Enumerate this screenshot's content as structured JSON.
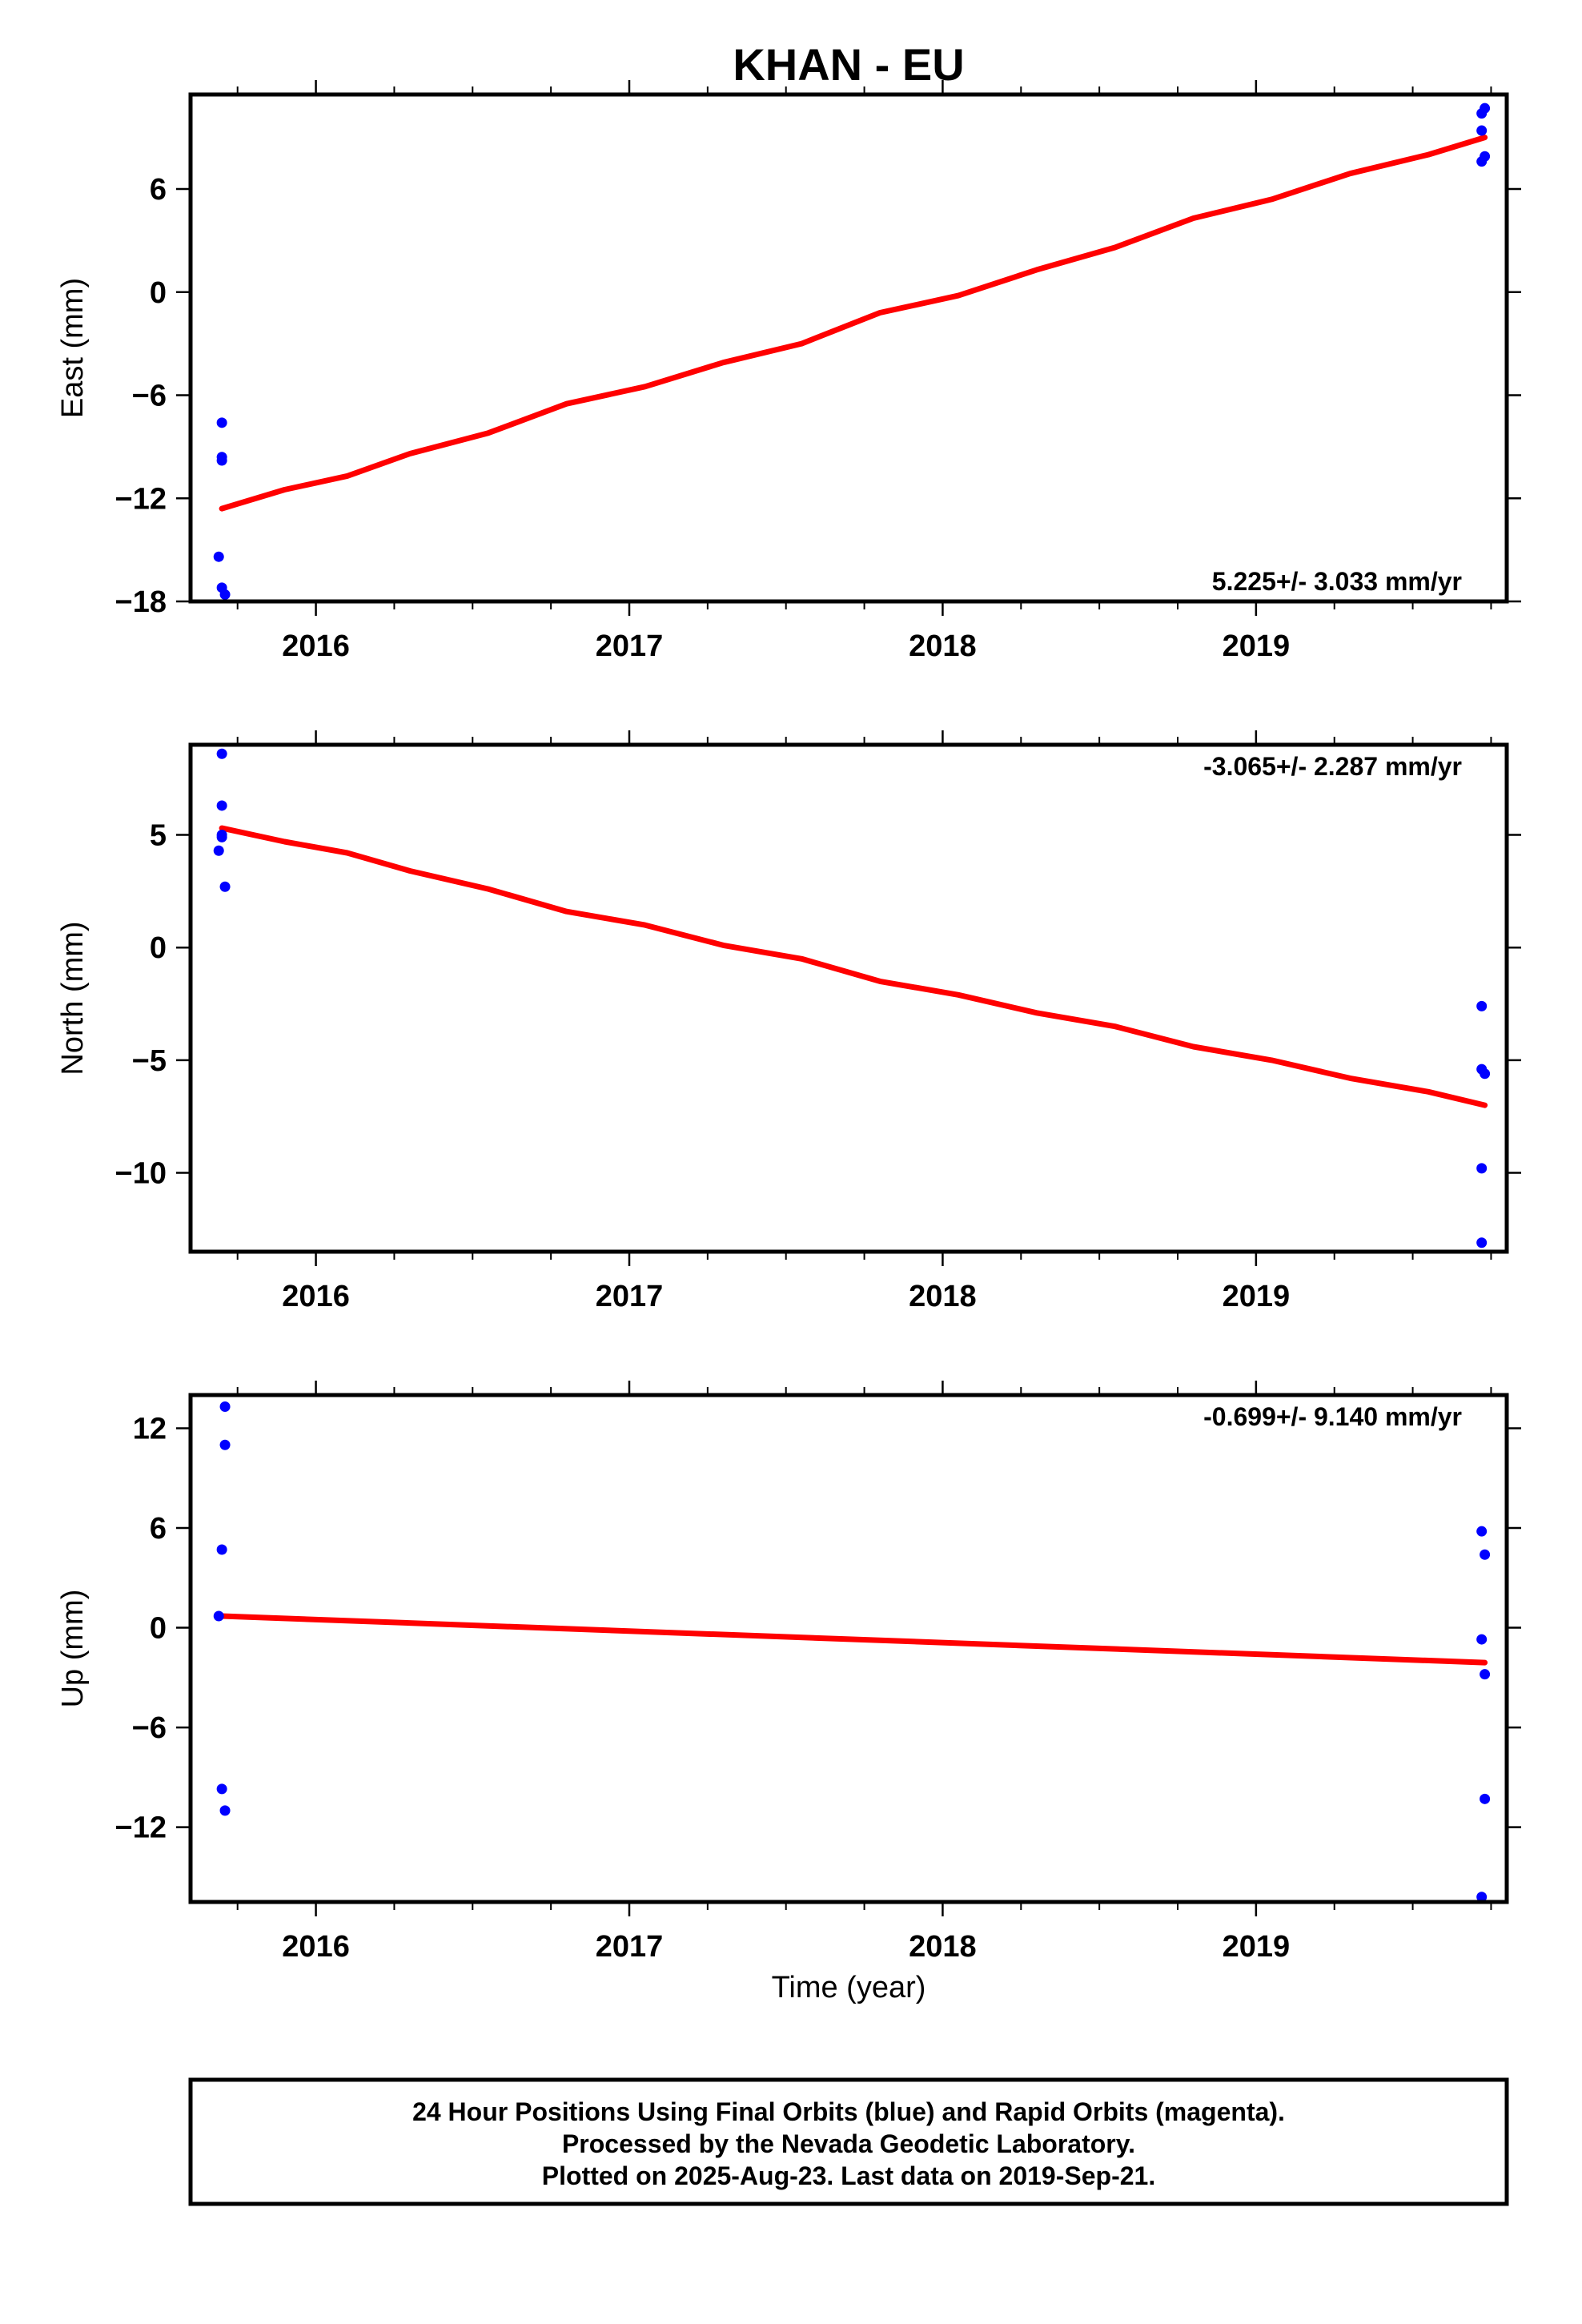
{
  "chart_data": {
    "type": "scatter",
    "title": "KHAN - EU",
    "xlabel": "Time (year)",
    "xlim": [
      2015.6,
      2019.8
    ],
    "xticks": [
      2016,
      2017,
      2018,
      2019
    ],
    "xtick_labels": [
      "2016",
      "2017",
      "2018",
      "2019"
    ],
    "grid": false,
    "panels": [
      {
        "name": "east",
        "ylabel": "East (mm)",
        "ylim": [
          -18,
          11.5
        ],
        "yticks": [
          6,
          0,
          -6,
          -12,
          -18
        ],
        "ytick_labels": [
          "6",
          "0",
          "−6",
          "−12",
          "−18"
        ],
        "rate_label": "5.225+/- 3.033 mm/yr",
        "rate_position": "bottom-right",
        "points": [
          {
            "x": 2015.7,
            "y": -7.6
          },
          {
            "x": 2015.7,
            "y": -9.6
          },
          {
            "x": 2015.7,
            "y": -9.8
          },
          {
            "x": 2015.69,
            "y": -15.4
          },
          {
            "x": 2015.7,
            "y": -17.2
          },
          {
            "x": 2015.71,
            "y": -17.6
          },
          {
            "x": 2019.72,
            "y": 10.4
          },
          {
            "x": 2019.73,
            "y": 10.7
          },
          {
            "x": 2019.72,
            "y": 9.4
          },
          {
            "x": 2019.73,
            "y": 7.9
          },
          {
            "x": 2019.72,
            "y": 7.6
          }
        ],
        "model": [
          {
            "x": 2015.7,
            "y": -12.6
          },
          {
            "x": 2015.9,
            "y": -11.5
          },
          {
            "x": 2016.1,
            "y": -10.7
          },
          {
            "x": 2016.3,
            "y": -9.4
          },
          {
            "x": 2016.55,
            "y": -8.2
          },
          {
            "x": 2016.8,
            "y": -6.5
          },
          {
            "x": 2017.05,
            "y": -5.5
          },
          {
            "x": 2017.3,
            "y": -4.1
          },
          {
            "x": 2017.55,
            "y": -3.0
          },
          {
            "x": 2017.8,
            "y": -1.2
          },
          {
            "x": 2018.05,
            "y": -0.2
          },
          {
            "x": 2018.3,
            "y": 1.3
          },
          {
            "x": 2018.55,
            "y": 2.6
          },
          {
            "x": 2018.8,
            "y": 4.3
          },
          {
            "x": 2019.05,
            "y": 5.4
          },
          {
            "x": 2019.3,
            "y": 6.9
          },
          {
            "x": 2019.55,
            "y": 8.0
          },
          {
            "x": 2019.73,
            "y": 9.0
          }
        ]
      },
      {
        "name": "north",
        "ylabel": "North (mm)",
        "ylim": [
          -13.5,
          9
        ],
        "yticks": [
          5,
          0,
          -5,
          -10
        ],
        "ytick_labels": [
          "5",
          "0",
          "−5",
          "−10"
        ],
        "rate_label": "-3.065+/- 2.287 mm/yr",
        "rate_position": "top-right",
        "points": [
          {
            "x": 2015.7,
            "y": 8.6
          },
          {
            "x": 2015.7,
            "y": 6.3
          },
          {
            "x": 2015.7,
            "y": 5.0
          },
          {
            "x": 2015.7,
            "y": 4.9
          },
          {
            "x": 2015.69,
            "y": 4.3
          },
          {
            "x": 2015.71,
            "y": 2.7
          },
          {
            "x": 2019.72,
            "y": -2.6
          },
          {
            "x": 2019.72,
            "y": -5.4
          },
          {
            "x": 2019.73,
            "y": -5.6
          },
          {
            "x": 2019.72,
            "y": -9.8
          },
          {
            "x": 2019.72,
            "y": -13.1
          }
        ],
        "model": [
          {
            "x": 2015.7,
            "y": 5.3
          },
          {
            "x": 2015.9,
            "y": 4.7
          },
          {
            "x": 2016.1,
            "y": 4.2
          },
          {
            "x": 2016.3,
            "y": 3.4
          },
          {
            "x": 2016.55,
            "y": 2.6
          },
          {
            "x": 2016.8,
            "y": 1.6
          },
          {
            "x": 2017.05,
            "y": 1.0
          },
          {
            "x": 2017.3,
            "y": 0.1
          },
          {
            "x": 2017.55,
            "y": -0.5
          },
          {
            "x": 2017.8,
            "y": -1.5
          },
          {
            "x": 2018.05,
            "y": -2.1
          },
          {
            "x": 2018.3,
            "y": -2.9
          },
          {
            "x": 2018.55,
            "y": -3.5
          },
          {
            "x": 2018.8,
            "y": -4.4
          },
          {
            "x": 2019.05,
            "y": -5.0
          },
          {
            "x": 2019.3,
            "y": -5.8
          },
          {
            "x": 2019.55,
            "y": -6.4
          },
          {
            "x": 2019.73,
            "y": -7.0
          }
        ]
      },
      {
        "name": "up",
        "ylabel": "Up (mm)",
        "ylim": [
          -16.5,
          14
        ],
        "yticks": [
          12,
          6,
          0,
          -6,
          -12
        ],
        "ytick_labels": [
          "12",
          "6",
          "0",
          "−6",
          "−12"
        ],
        "rate_label": "-0.699+/- 9.140 mm/yr",
        "rate_position": "top-right",
        "points": [
          {
            "x": 2015.71,
            "y": 13.3
          },
          {
            "x": 2015.71,
            "y": 11.0
          },
          {
            "x": 2015.7,
            "y": 4.7
          },
          {
            "x": 2015.69,
            "y": 0.7
          },
          {
            "x": 2015.7,
            "y": -9.7
          },
          {
            "x": 2015.71,
            "y": -11.0
          },
          {
            "x": 2019.72,
            "y": 5.8
          },
          {
            "x": 2019.73,
            "y": 4.4
          },
          {
            "x": 2019.72,
            "y": -0.7
          },
          {
            "x": 2019.73,
            "y": -2.8
          },
          {
            "x": 2019.73,
            "y": -10.3
          },
          {
            "x": 2019.72,
            "y": -16.2
          }
        ],
        "model": [
          {
            "x": 2015.7,
            "y": 0.7
          },
          {
            "x": 2019.73,
            "y": -2.1
          }
        ]
      }
    ],
    "point_color": "#0000ff",
    "model_color": "#ff0000",
    "footer": {
      "lines": [
        "24 Hour Positions Using Final Orbits (blue) and Rapid Orbits (magenta).",
        "Processed by the Nevada Geodetic Laboratory.",
        "Plotted on 2025-Aug-23. Last data on 2019-Sep-21."
      ]
    }
  }
}
